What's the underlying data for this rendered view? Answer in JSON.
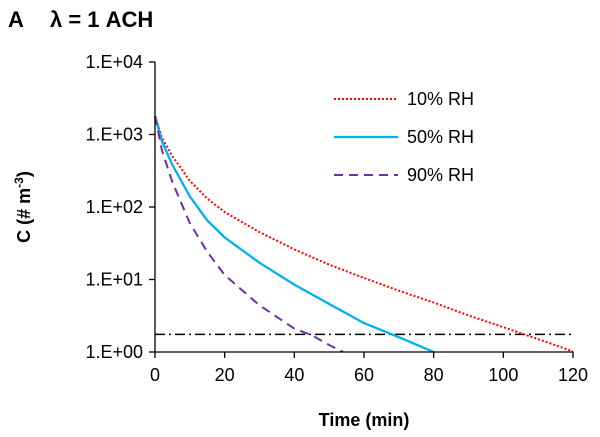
{
  "chart_data": {
    "type": "line",
    "panel_letter": "A",
    "title": "λ = 1 ACH",
    "xlabel": "Time (min)",
    "ylabel_prefix": "C (# m",
    "ylabel_sup": "-3",
    "ylabel_suffix": ")",
    "xlim": [
      0,
      120
    ],
    "ylim": [
      1,
      10000
    ],
    "yscale": "log",
    "grid": false,
    "legend_position": "top-right",
    "x_ticks": [
      0,
      20,
      40,
      60,
      80,
      100,
      120
    ],
    "x_tick_labels": [
      "0",
      "20",
      "40",
      "60",
      "80",
      "100",
      "120"
    ],
    "y_ticks": [
      1,
      10,
      100,
      1000,
      10000
    ],
    "y_tick_labels": [
      "1.E+00",
      "1.E+01",
      "1.E+02",
      "1.E+03",
      "1.E+04"
    ],
    "series": [
      {
        "name": "10% RH",
        "color": "#ff0000",
        "style": "dotted",
        "x": [
          0,
          2,
          5,
          10,
          15,
          20,
          30,
          40,
          50,
          60,
          70,
          80,
          90,
          100,
          110,
          120
        ],
        "values": [
          1800,
          900,
          500,
          230,
          130,
          85,
          45,
          26,
          16,
          10.5,
          7,
          4.8,
          3.2,
          2.2,
          1.5,
          1.02
        ]
      },
      {
        "name": "50% RH",
        "color": "#00b0f0",
        "style": "solid",
        "x": [
          0,
          2,
          5,
          10,
          15,
          20,
          30,
          40,
          50,
          60,
          70,
          80
        ],
        "values": [
          1800,
          800,
          380,
          140,
          65,
          38,
          17,
          8.5,
          4.6,
          2.5,
          1.6,
          1.0
        ]
      },
      {
        "name": "90% RH",
        "color": "#7030a0",
        "style": "dashed",
        "x": [
          0,
          2,
          5,
          10,
          15,
          20,
          30,
          40,
          45,
          50,
          54
        ],
        "values": [
          1800,
          600,
          220,
          60,
          24,
          11.5,
          4.4,
          2.1,
          1.7,
          1.25,
          1.0
        ]
      }
    ],
    "reference_line": {
      "y": 1.75,
      "color": "#000000",
      "style": "dash-dot"
    }
  }
}
